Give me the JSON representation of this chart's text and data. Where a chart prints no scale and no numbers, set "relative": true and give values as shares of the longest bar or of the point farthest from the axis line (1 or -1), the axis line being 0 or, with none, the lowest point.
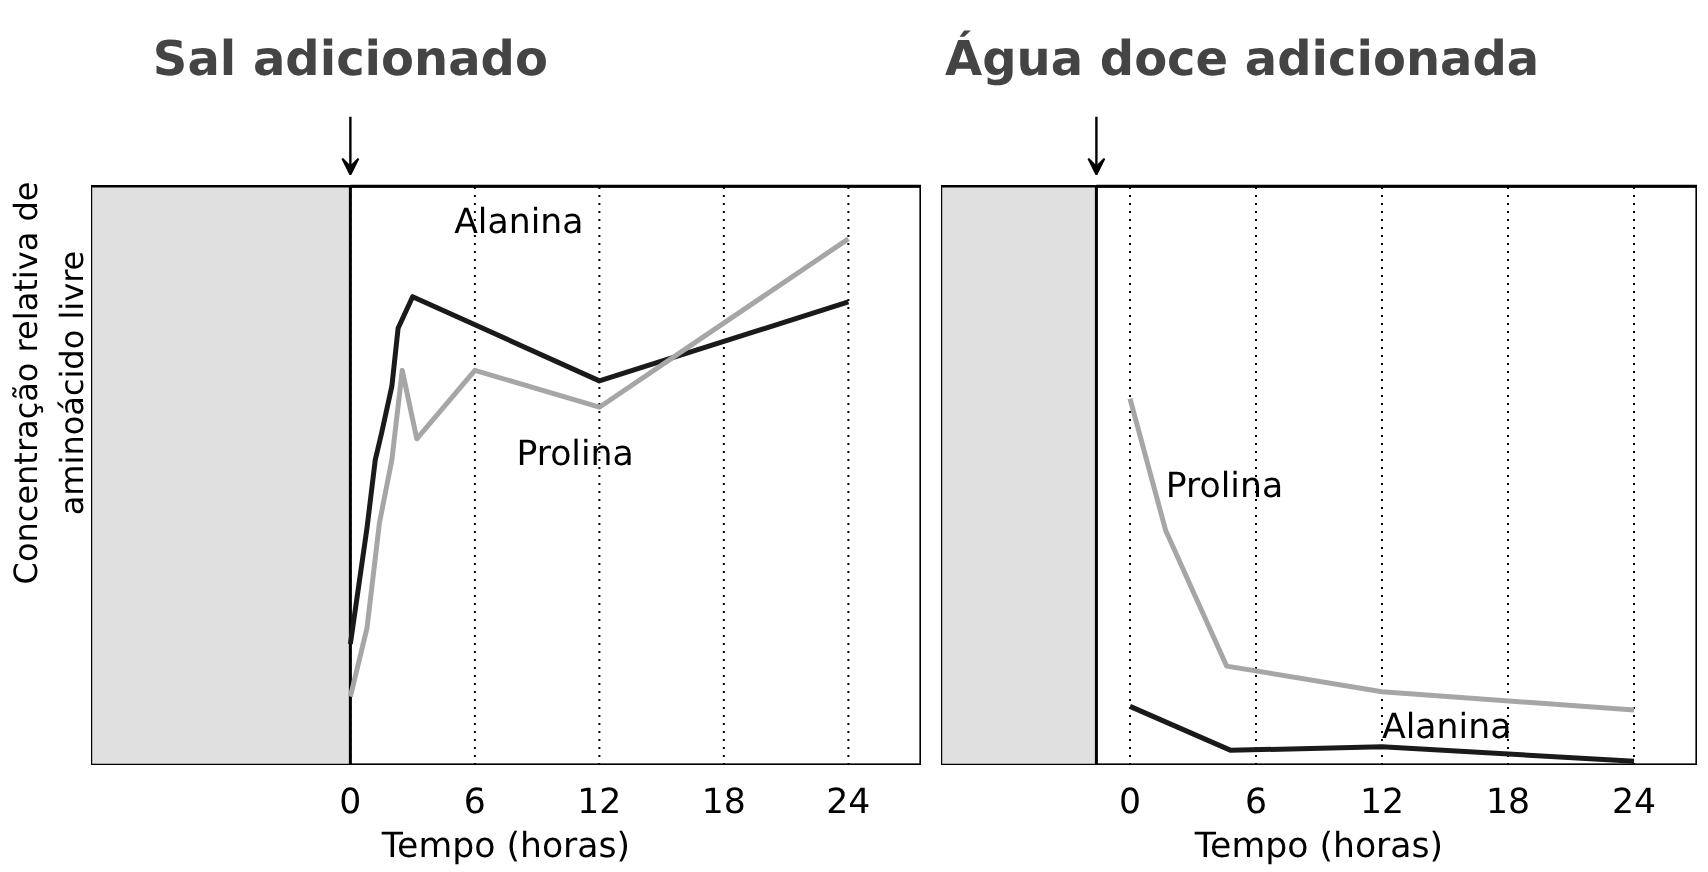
{
  "chart_data": [
    {
      "type": "line",
      "title": "Sal adicionado",
      "xlabel": "Tempo (horas)",
      "ylabel": "Concentração relativa de\naminoácido livre",
      "relative": true,
      "xlim": [
        -12.5,
        27.5
      ],
      "xticks": [
        0,
        6,
        12,
        18,
        24
      ],
      "grid": "x",
      "legend": false,
      "bands": [
        {
          "axis": "x",
          "from": -12.5,
          "to": 0,
          "color": "#e0e0e0"
        }
      ],
      "series": [
        {
          "name": "Alanina",
          "color": "#1a1a1a",
          "x": [
            0,
            0.4,
            0.8,
            1.2,
            1.5,
            2,
            2.3,
            3,
            12,
            24
          ],
          "values": [
            0.23,
            0.34,
            0.45,
            0.58,
            0.63,
            0.72,
            0.83,
            0.89,
            0.73,
            0.88
          ]
        },
        {
          "name": "Prolina",
          "color": "#a6a6a6",
          "x": [
            0,
            0.8,
            1.4,
            2,
            2.5,
            3.2,
            6,
            12,
            24
          ],
          "values": [
            0.13,
            0.26,
            0.46,
            0.58,
            0.75,
            0.62,
            0.75,
            0.68,
            1.0
          ]
        }
      ]
    },
    {
      "type": "line",
      "title": "Água doce  adicionada",
      "xlabel": "Tempo (horas)",
      "relative": true,
      "xlim": [
        -9,
        27
      ],
      "xticks": [
        0,
        6,
        12,
        18,
        24
      ],
      "grid": "x",
      "legend": false,
      "bands": [
        {
          "axis": "x",
          "from": -9,
          "to": -1.6,
          "color": "#e0e0e0"
        }
      ],
      "series": [
        {
          "name": "Prolina",
          "color": "#a6a6a6",
          "x": [
            0,
            1.7,
            4.6,
            12,
            24
          ],
          "values": [
            1.0,
            0.64,
            0.27,
            0.2,
            0.15
          ]
        },
        {
          "name": "Alanina",
          "color": "#1a1a1a",
          "x": [
            0,
            4.8,
            12,
            24
          ],
          "values": [
            0.16,
            0.04,
            0.05,
            0.01
          ]
        }
      ]
    }
  ]
}
